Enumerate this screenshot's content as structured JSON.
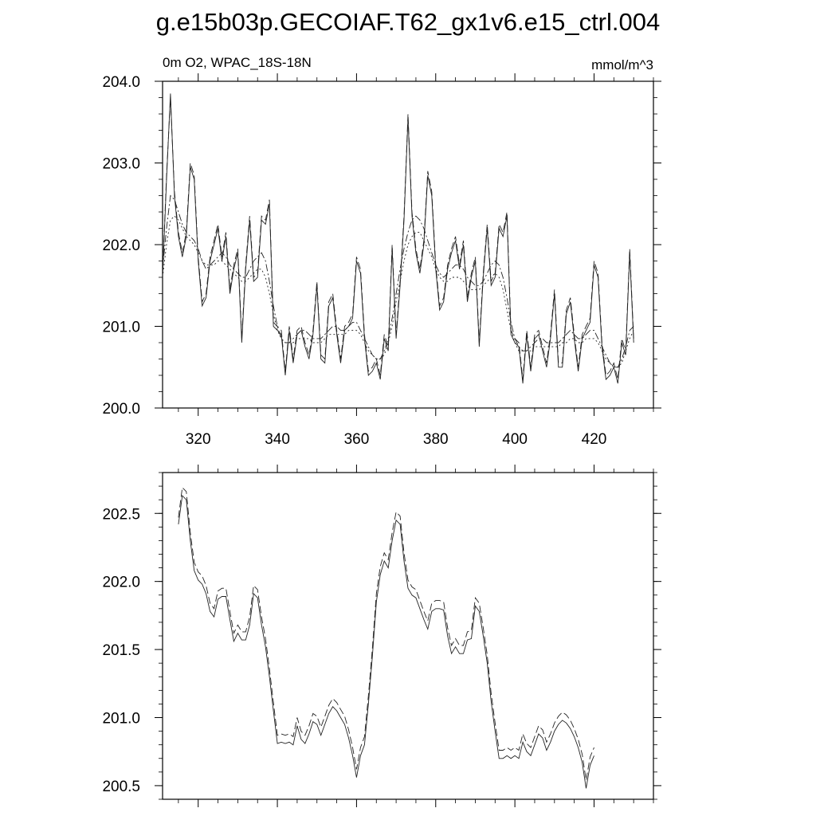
{
  "title": "g.e15b03p.GECOIAF.T62_gx1v6.e15_ctrl.004",
  "chart_data": [
    {
      "type": "line",
      "left_label": "0m O2, WPAC_18S-18N",
      "right_label": "mmol/m^3",
      "xlim": [
        311,
        435
      ],
      "ylim": [
        200.0,
        204.0
      ],
      "x_ticks": [
        320,
        340,
        360,
        380,
        400,
        420
      ],
      "x_tick_labels": [
        "320",
        "340",
        "360",
        "380",
        "400",
        "420"
      ],
      "y_ticks": [
        200.0,
        201.0,
        202.0,
        203.0,
        204.0
      ],
      "y_tick_labels": [
        "200.0",
        "201.0",
        "202.0",
        "203.0",
        "204.0"
      ],
      "grid": false,
      "x_start": 311,
      "series": [
        {
          "style": "solid",
          "values": [
            201.6,
            202.8,
            203.85,
            202.6,
            202.1,
            201.85,
            202.1,
            202.95,
            202.8,
            201.8,
            201.25,
            201.35,
            201.8,
            202.0,
            202.2,
            201.8,
            202.1,
            201.4,
            201.7,
            201.9,
            200.8,
            201.7,
            202.3,
            201.55,
            201.6,
            202.3,
            202.25,
            202.5,
            201.0,
            200.95,
            200.9,
            200.4,
            200.95,
            200.55,
            200.9,
            200.95,
            200.75,
            200.6,
            200.9,
            201.5,
            200.6,
            200.55,
            201.25,
            201.35,
            200.9,
            200.55,
            200.95,
            201.0,
            201.1,
            201.8,
            201.65,
            200.85,
            200.4,
            200.45,
            200.55,
            200.35,
            200.85,
            200.7,
            201.95,
            200.85,
            201.5,
            202.3,
            203.55,
            202.35,
            201.9,
            201.65,
            202.0,
            202.85,
            202.6,
            201.7,
            201.2,
            201.3,
            201.7,
            201.9,
            202.05,
            201.7,
            202.0,
            201.3,
            201.6,
            201.8,
            200.75,
            201.6,
            202.2,
            201.5,
            201.6,
            202.2,
            202.1,
            202.35,
            200.9,
            200.8,
            200.75,
            200.3,
            200.9,
            200.45,
            200.85,
            200.9,
            200.7,
            200.5,
            200.85,
            201.4,
            200.5,
            200.5,
            201.15,
            201.3,
            200.85,
            200.45,
            200.85,
            200.95,
            201.05,
            201.75,
            201.6,
            200.75,
            200.35,
            200.4,
            200.5,
            200.3,
            200.8,
            200.65,
            201.9,
            200.8
          ]
        },
        {
          "style": "dashed",
          "values": [
            201.65,
            202.85,
            203.8,
            202.65,
            202.15,
            201.9,
            202.15,
            203.0,
            202.85,
            201.85,
            201.3,
            201.4,
            201.85,
            202.05,
            202.25,
            201.85,
            202.15,
            201.45,
            201.75,
            201.95,
            200.85,
            201.75,
            202.35,
            201.6,
            201.65,
            202.35,
            202.3,
            202.55,
            201.05,
            201.0,
            200.95,
            200.45,
            201.0,
            200.6,
            200.95,
            201.0,
            200.8,
            200.65,
            200.95,
            201.55,
            200.65,
            200.6,
            201.3,
            201.4,
            200.95,
            200.6,
            201.0,
            201.05,
            201.15,
            201.85,
            201.7,
            200.9,
            200.45,
            200.5,
            200.6,
            200.4,
            200.9,
            200.75,
            202.0,
            200.9,
            201.55,
            202.35,
            203.6,
            202.4,
            201.95,
            201.7,
            202.05,
            202.9,
            202.65,
            201.75,
            201.25,
            201.35,
            201.75,
            201.95,
            202.1,
            201.75,
            202.05,
            201.35,
            201.65,
            201.85,
            200.8,
            201.65,
            202.25,
            201.55,
            201.65,
            202.25,
            202.15,
            202.4,
            200.95,
            200.85,
            200.8,
            200.35,
            200.95,
            200.5,
            200.9,
            200.95,
            200.75,
            200.55,
            200.9,
            201.45,
            200.55,
            200.55,
            201.2,
            201.35,
            200.9,
            200.5,
            200.9,
            201.0,
            201.1,
            201.8,
            201.65,
            200.8,
            200.4,
            200.45,
            200.55,
            200.35,
            200.85,
            200.7,
            201.95,
            200.85
          ]
        },
        {
          "style": "dash-dot",
          "values": [
            201.7,
            202.2,
            202.6,
            202.55,
            202.4,
            202.25,
            202.15,
            202.1,
            202.05,
            201.95,
            201.8,
            201.7,
            201.75,
            201.8,
            201.85,
            201.9,
            201.85,
            201.75,
            201.7,
            201.65,
            201.6,
            201.6,
            201.7,
            201.8,
            201.85,
            201.9,
            201.8,
            201.55,
            201.25,
            201.0,
            200.85,
            200.8,
            200.8,
            200.85,
            200.9,
            200.95,
            200.95,
            200.9,
            200.85,
            200.85,
            200.85,
            200.9,
            200.95,
            201.0,
            201.0,
            200.95,
            200.95,
            201.0,
            201.05,
            201.05,
            200.95,
            200.85,
            200.75,
            200.65,
            200.6,
            200.6,
            200.7,
            200.85,
            201.1,
            201.4,
            201.7,
            201.95,
            202.15,
            202.3,
            202.35,
            202.3,
            202.2,
            202.05,
            201.9,
            201.75,
            201.65,
            201.6,
            201.65,
            201.7,
            201.75,
            201.75,
            201.7,
            201.6,
            201.55,
            201.5,
            201.5,
            201.55,
            201.65,
            201.75,
            201.8,
            201.75,
            201.6,
            201.35,
            201.05,
            200.85,
            200.75,
            200.7,
            200.7,
            200.75,
            200.8,
            200.85,
            200.85,
            200.8,
            200.8,
            200.8,
            200.8,
            200.85,
            200.9,
            200.95,
            200.9,
            200.85,
            200.85,
            200.9,
            200.95,
            200.95,
            200.85,
            200.75,
            200.65,
            200.55,
            200.5,
            200.5,
            200.6,
            200.75,
            200.95,
            201.0
          ]
        },
        {
          "style": "dotted",
          "values": [
            201.6,
            202.0,
            202.3,
            202.35,
            202.3,
            202.2,
            202.1,
            202.05,
            202.0,
            201.9,
            201.8,
            201.75,
            201.75,
            201.75,
            201.8,
            201.8,
            201.75,
            201.7,
            201.65,
            201.6,
            201.55,
            201.55,
            201.6,
            201.65,
            201.7,
            201.7,
            201.6,
            201.4,
            201.15,
            200.95,
            200.85,
            200.8,
            200.8,
            200.8,
            200.85,
            200.85,
            200.85,
            200.85,
            200.8,
            200.8,
            200.8,
            200.85,
            200.9,
            200.9,
            200.9,
            200.9,
            200.9,
            200.95,
            200.95,
            200.95,
            200.9,
            200.8,
            200.7,
            200.65,
            200.6,
            200.6,
            200.65,
            200.8,
            201.0,
            201.3,
            201.55,
            201.8,
            202.0,
            202.1,
            202.15,
            202.15,
            202.05,
            201.95,
            201.85,
            201.7,
            201.6,
            201.55,
            201.55,
            201.6,
            201.6,
            201.6,
            201.55,
            201.5,
            201.45,
            201.45,
            201.45,
            201.5,
            201.55,
            201.6,
            201.65,
            201.6,
            201.45,
            201.2,
            200.95,
            200.8,
            200.7,
            200.7,
            200.7,
            200.7,
            200.75,
            200.75,
            200.75,
            200.75,
            200.75,
            200.75,
            200.75,
            200.8,
            200.8,
            200.85,
            200.85,
            200.8,
            200.8,
            200.85,
            200.85,
            200.85,
            200.8,
            200.7,
            200.6,
            200.55,
            200.5,
            200.5,
            200.55,
            200.7,
            200.85,
            200.95
          ]
        }
      ]
    },
    {
      "type": "line",
      "xlim": [
        311,
        435
      ],
      "ylim": [
        200.4,
        202.8
      ],
      "x_ticks": [
        320,
        340,
        360,
        380,
        400,
        420
      ],
      "y_ticks": [
        200.5,
        201.0,
        201.5,
        202.0,
        202.5
      ],
      "y_tick_labels": [
        "200.5",
        "201.0",
        "201.5",
        "202.0",
        "202.5"
      ],
      "grid": false,
      "x_start": 315,
      "series": [
        {
          "style": "solid",
          "values": [
            202.42,
            202.63,
            202.6,
            202.3,
            202.08,
            202.01,
            201.98,
            201.91,
            201.78,
            201.74,
            201.87,
            201.89,
            201.89,
            201.72,
            201.56,
            201.62,
            201.57,
            201.57,
            201.68,
            201.91,
            201.88,
            201.68,
            201.52,
            201.3,
            201.05,
            200.81,
            200.82,
            200.81,
            200.82,
            200.8,
            200.94,
            200.84,
            200.81,
            200.88,
            200.97,
            200.95,
            200.87,
            200.95,
            201.03,
            201.08,
            201.05,
            201.0,
            200.95,
            200.85,
            200.72,
            200.56,
            200.72,
            200.8,
            201.1,
            201.45,
            201.85,
            202.05,
            202.15,
            202.1,
            202.3,
            202.45,
            202.42,
            202.15,
            201.95,
            201.9,
            201.88,
            201.8,
            201.72,
            201.65,
            201.78,
            201.8,
            201.8,
            201.79,
            201.6,
            201.47,
            201.52,
            201.47,
            201.47,
            201.57,
            201.58,
            201.82,
            201.78,
            201.6,
            201.4,
            201.12,
            200.9,
            200.7,
            200.7,
            200.72,
            200.7,
            200.72,
            200.7,
            200.82,
            200.75,
            200.72,
            200.8,
            200.88,
            200.85,
            200.76,
            200.82,
            200.9,
            200.95,
            200.98,
            200.96,
            200.92,
            200.86,
            200.78,
            200.67,
            200.48,
            200.65,
            200.72
          ]
        },
        {
          "style": "dashed",
          "values": [
            202.47,
            202.69,
            202.66,
            202.36,
            202.14,
            202.07,
            202.04,
            201.97,
            201.84,
            201.8,
            201.93,
            201.95,
            201.95,
            201.78,
            201.62,
            201.68,
            201.63,
            201.63,
            201.74,
            201.97,
            201.94,
            201.74,
            201.58,
            201.36,
            201.11,
            200.87,
            200.88,
            200.87,
            200.88,
            200.86,
            201.0,
            200.9,
            200.87,
            200.94,
            201.03,
            201.01,
            200.93,
            201.01,
            201.09,
            201.14,
            201.11,
            201.06,
            201.01,
            200.91,
            200.78,
            200.62,
            200.78,
            200.86,
            201.16,
            201.51,
            201.91,
            202.11,
            202.21,
            202.16,
            202.36,
            202.51,
            202.48,
            202.21,
            202.01,
            201.96,
            201.94,
            201.86,
            201.78,
            201.71,
            201.84,
            201.86,
            201.86,
            201.85,
            201.66,
            201.53,
            201.58,
            201.53,
            201.53,
            201.63,
            201.64,
            201.88,
            201.84,
            201.66,
            201.46,
            201.18,
            200.96,
            200.76,
            200.76,
            200.78,
            200.76,
            200.78,
            200.76,
            200.88,
            200.81,
            200.78,
            200.86,
            200.94,
            200.91,
            200.82,
            200.88,
            200.96,
            201.01,
            201.04,
            201.02,
            200.98,
            200.92,
            200.84,
            200.73,
            200.54,
            200.71,
            200.78
          ]
        }
      ]
    }
  ]
}
